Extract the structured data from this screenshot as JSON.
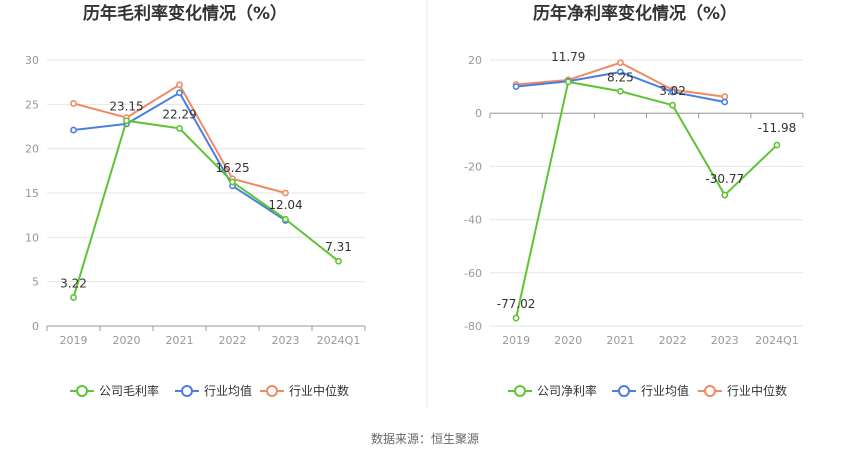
{
  "source": "数据来源：恒生聚源",
  "colors": {
    "company": "#5ec434",
    "avg": "#4a7fe0",
    "median": "#f08a64"
  },
  "chart_data": [
    {
      "type": "line",
      "title": "历年毛利率变化情况（%）",
      "categories": [
        "2019",
        "2020",
        "2021",
        "2022",
        "2023",
        "2024Q1"
      ],
      "yticks": [
        0,
        5,
        10,
        15,
        20,
        25,
        30
      ],
      "ylim": [
        0,
        30
      ],
      "grid": true,
      "legend_position": "bottom",
      "series": [
        {
          "name": "公司毛利率",
          "values": [
            3.22,
            23.15,
            22.29,
            16.25,
            12.04,
            7.31
          ],
          "labeled": true,
          "color": "#5ec434"
        },
        {
          "name": "行业均值",
          "values": [
            22.1,
            22.8,
            26.3,
            15.8,
            11.9,
            null
          ],
          "labeled": false,
          "color": "#4a7fe0"
        },
        {
          "name": "行业中位数",
          "values": [
            25.1,
            23.5,
            27.2,
            16.6,
            15.0,
            null
          ],
          "labeled": false,
          "color": "#f08a64"
        }
      ]
    },
    {
      "type": "line",
      "title": "历年净利率变化情况（%）",
      "categories": [
        "2019",
        "2020",
        "2021",
        "2022",
        "2023",
        "2024Q1"
      ],
      "yticks": [
        -80,
        -60,
        -40,
        -20,
        0,
        20
      ],
      "ylim": [
        -80,
        20
      ],
      "grid": true,
      "legend_position": "bottom",
      "series": [
        {
          "name": "公司净利率",
          "values": [
            -77.02,
            11.79,
            8.25,
            3.02,
            -30.77,
            -11.98
          ],
          "labeled": true,
          "color": "#5ec434"
        },
        {
          "name": "行业均值",
          "values": [
            10.0,
            12.0,
            15.5,
            8.0,
            4.2,
            null
          ],
          "labeled": false,
          "color": "#4a7fe0"
        },
        {
          "name": "行业中位数",
          "values": [
            10.8,
            12.5,
            19.0,
            8.8,
            6.2,
            null
          ],
          "labeled": false,
          "color": "#f08a64"
        }
      ]
    }
  ]
}
